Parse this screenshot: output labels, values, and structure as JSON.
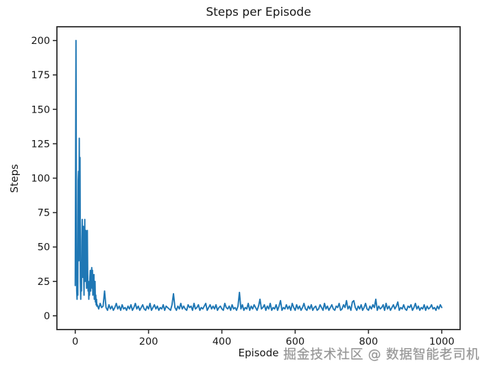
{
  "watermark": {
    "text": "掘金技术社区 @ 数据智能老司机"
  },
  "colors": {
    "line": "#1f77b4",
    "axis": "#2a2a2a",
    "text": "#161616",
    "background": "#ffffff",
    "watermark": "#919191"
  },
  "chart_data": {
    "type": "line",
    "title": "Steps per Episode",
    "xlabel": "Episode",
    "ylabel": "Steps",
    "grid": false,
    "legend_position": "none",
    "xticks": [
      0,
      200,
      400,
      600,
      800,
      1000
    ],
    "yticks": [
      0,
      25,
      50,
      75,
      100,
      125,
      150,
      175,
      200
    ],
    "xlim": [
      -50,
      1050
    ],
    "ylim": [
      -10,
      210
    ],
    "x": [
      0,
      1,
      2,
      3,
      4,
      5,
      6,
      7,
      8,
      9,
      10,
      11,
      12,
      13,
      14,
      15,
      16,
      17,
      18,
      19,
      20,
      21,
      22,
      23,
      24,
      25,
      26,
      27,
      28,
      29,
      30,
      31,
      32,
      33,
      34,
      35,
      36,
      37,
      38,
      39,
      40,
      41,
      42,
      43,
      44,
      45,
      46,
      47,
      48,
      49,
      50,
      51,
      52,
      53,
      54,
      55,
      56,
      57,
      58,
      59,
      60,
      64,
      68,
      72,
      76,
      80,
      84,
      88,
      92,
      96,
      100,
      104,
      108,
      112,
      116,
      120,
      124,
      128,
      132,
      136,
      140,
      144,
      148,
      152,
      156,
      160,
      164,
      168,
      172,
      176,
      180,
      184,
      188,
      192,
      196,
      200,
      204,
      208,
      212,
      216,
      220,
      224,
      228,
      232,
      236,
      240,
      244,
      248,
      252,
      256,
      260,
      264,
      268,
      272,
      276,
      280,
      284,
      288,
      292,
      296,
      300,
      304,
      308,
      312,
      316,
      320,
      324,
      328,
      332,
      336,
      340,
      344,
      348,
      352,
      356,
      360,
      364,
      368,
      372,
      376,
      380,
      384,
      388,
      392,
      396,
      400,
      404,
      408,
      412,
      416,
      420,
      424,
      428,
      432,
      436,
      440,
      444,
      448,
      452,
      456,
      460,
      464,
      468,
      472,
      476,
      480,
      484,
      488,
      492,
      496,
      500,
      504,
      508,
      512,
      516,
      520,
      524,
      528,
      532,
      536,
      540,
      544,
      548,
      552,
      556,
      560,
      564,
      568,
      572,
      576,
      580,
      584,
      588,
      592,
      596,
      600,
      604,
      608,
      612,
      616,
      620,
      624,
      628,
      632,
      636,
      640,
      644,
      648,
      652,
      656,
      660,
      664,
      668,
      672,
      676,
      680,
      684,
      688,
      692,
      696,
      700,
      704,
      708,
      712,
      716,
      720,
      724,
      728,
      732,
      736,
      740,
      744,
      748,
      752,
      756,
      760,
      764,
      768,
      772,
      776,
      780,
      784,
      788,
      792,
      796,
      800,
      804,
      808,
      812,
      816,
      820,
      824,
      828,
      832,
      836,
      840,
      844,
      848,
      852,
      856,
      860,
      864,
      868,
      872,
      876,
      880,
      884,
      888,
      892,
      896,
      900,
      904,
      908,
      912,
      916,
      920,
      924,
      928,
      932,
      936,
      940,
      944,
      948,
      952,
      956,
      960,
      964,
      968,
      972,
      976,
      980,
      984,
      988,
      992,
      996,
      1000
    ],
    "y": [
      22,
      105,
      200,
      95,
      18,
      12,
      30,
      15,
      98,
      105,
      40,
      129,
      60,
      115,
      25,
      12,
      35,
      18,
      55,
      70,
      28,
      45,
      65,
      30,
      15,
      48,
      70,
      25,
      40,
      62,
      35,
      20,
      58,
      62,
      30,
      18,
      25,
      12,
      20,
      15,
      28,
      33,
      18,
      30,
      25,
      35,
      20,
      33,
      15,
      28,
      22,
      30,
      12,
      18,
      25,
      10,
      15,
      8,
      12,
      7,
      8,
      5,
      9,
      6,
      7,
      18,
      6,
      4,
      8,
      5,
      7,
      4,
      6,
      9,
      5,
      7,
      4,
      8,
      5,
      6,
      4,
      7,
      5,
      8,
      4,
      6,
      9,
      5,
      7,
      4,
      6,
      8,
      5,
      4,
      7,
      5,
      9,
      4,
      6,
      8,
      5,
      7,
      4,
      6,
      5,
      8,
      4,
      7,
      6,
      5,
      4,
      8,
      16,
      6,
      4,
      7,
      5,
      9,
      5,
      7,
      5,
      4,
      8,
      6,
      7,
      4,
      9,
      5,
      6,
      8,
      4,
      6,
      5,
      7,
      9,
      4,
      6,
      8,
      5,
      7,
      5,
      8,
      4,
      6,
      7,
      5,
      4,
      9,
      6,
      5,
      7,
      4,
      8,
      5,
      6,
      4,
      7,
      17,
      5,
      8,
      4,
      6,
      5,
      9,
      4,
      7,
      5,
      8,
      6,
      4,
      7,
      12,
      5,
      6,
      8,
      4,
      7,
      5,
      9,
      4,
      6,
      5,
      8,
      4,
      7,
      11,
      4,
      6,
      5,
      8,
      5,
      7,
      4,
      9,
      6,
      4,
      8,
      5,
      7,
      4,
      6,
      9,
      5,
      4,
      7,
      5,
      8,
      4,
      6,
      7,
      4,
      5,
      8,
      6,
      4,
      9,
      5,
      7,
      4,
      6,
      8,
      5,
      4,
      7,
      6,
      9,
      4,
      5,
      8,
      6,
      11,
      5,
      7,
      4,
      10,
      11,
      6,
      4,
      7,
      5,
      8,
      4,
      6,
      9,
      5,
      4,
      7,
      5,
      8,
      6,
      12,
      4,
      7,
      5,
      6,
      8,
      4,
      9,
      5,
      7,
      4,
      6,
      8,
      5,
      7,
      10,
      4,
      6,
      5,
      8,
      5,
      4,
      7,
      6,
      8,
      4,
      6,
      9,
      5,
      7,
      4,
      6,
      5,
      8,
      4,
      7,
      5,
      6,
      8,
      5,
      6,
      4,
      7,
      5,
      8,
      6
    ]
  }
}
